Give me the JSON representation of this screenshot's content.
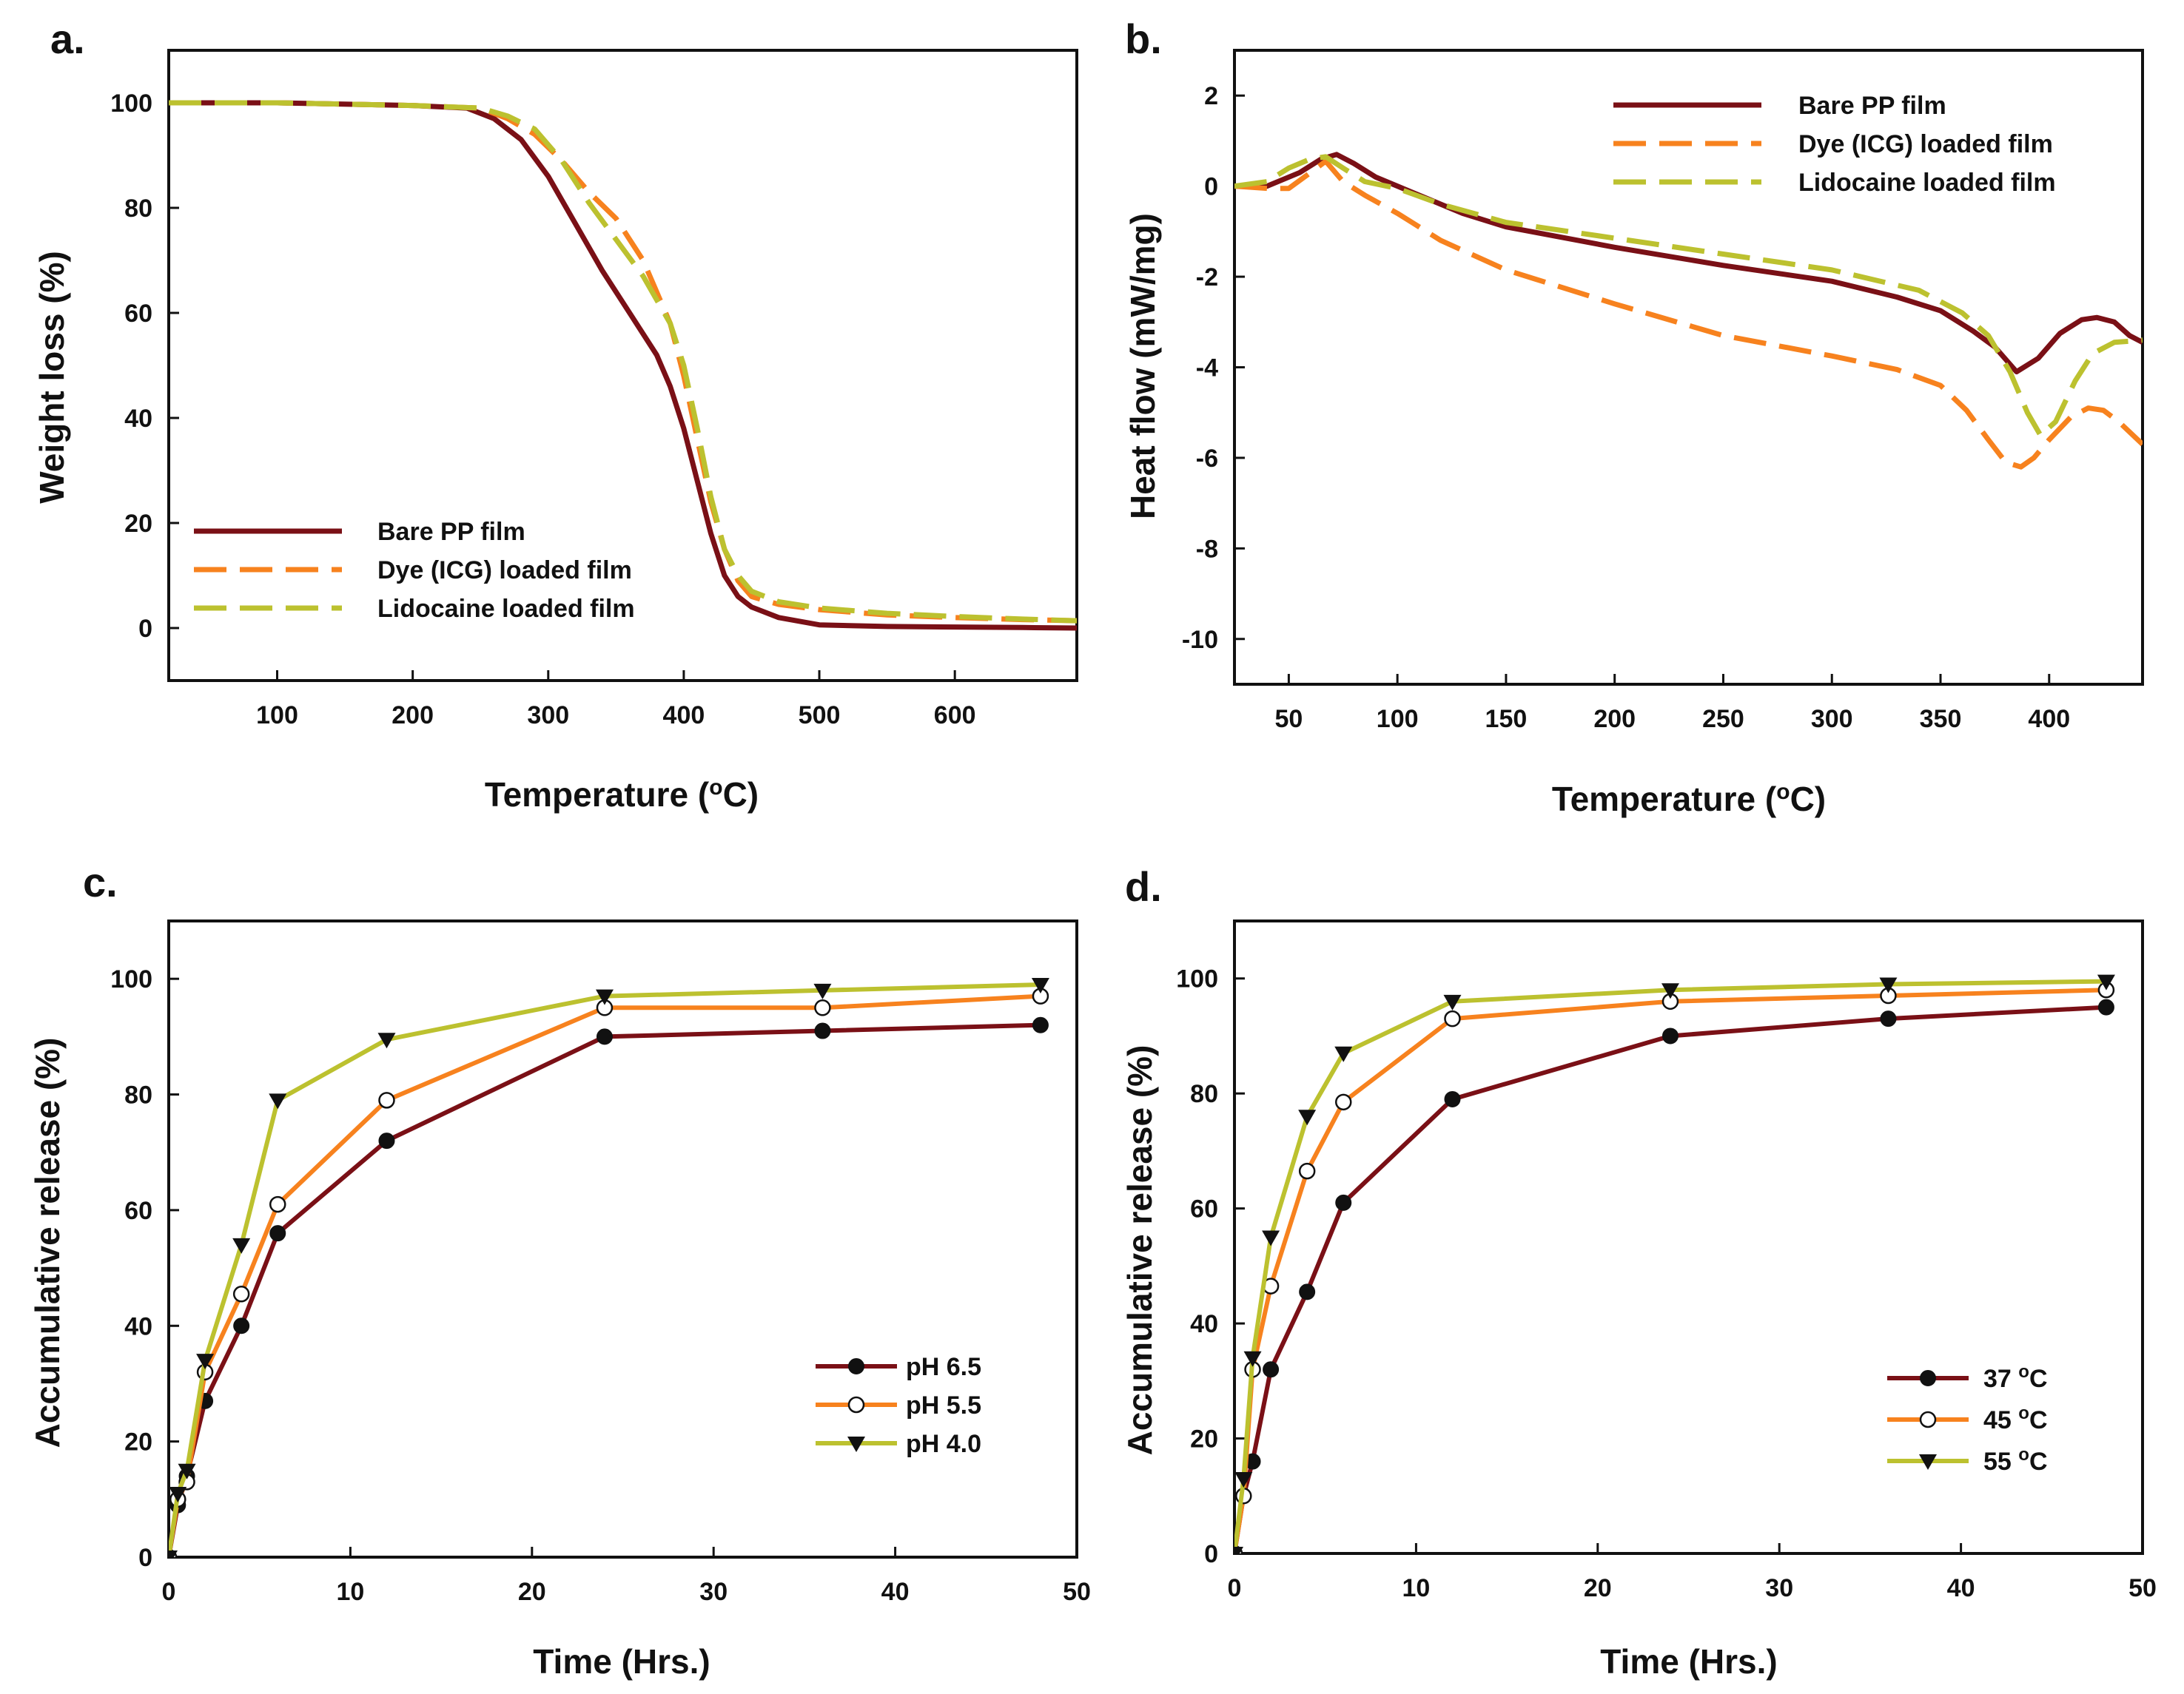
{
  "colors": {
    "bare": "#7a1016",
    "dye": "#f7821e",
    "lido": "#bcc12f",
    "ph65": "#7a1016",
    "ph55": "#f7821e",
    "ph40": "#bcc12f"
  },
  "chart_data": [
    {
      "id": "a",
      "panel": "a.",
      "type": "line",
      "xlabel_main": "Temperature (",
      "xlabel_sup": "o",
      "xlabel_end": "C)",
      "ylabel": "Weight loss (%)",
      "xlim": [
        20,
        690
      ],
      "ylim": [
        -10,
        110
      ],
      "xticks": [
        100,
        200,
        300,
        400,
        500,
        600
      ],
      "yticks": [
        0,
        20,
        40,
        60,
        80,
        100
      ],
      "legend_position": "lower-left",
      "series": [
        {
          "name": "Bare PP film",
          "color_key": "bare",
          "style": "solid",
          "x": [
            20,
            100,
            200,
            240,
            260,
            280,
            300,
            320,
            340,
            360,
            380,
            390,
            400,
            410,
            420,
            430,
            440,
            450,
            470,
            500,
            550,
            600,
            650,
            690
          ],
          "y": [
            100,
            100,
            99.5,
            99,
            97,
            93,
            86,
            77,
            68,
            60,
            52,
            46,
            38,
            28,
            18,
            10,
            6,
            4,
            2,
            0.6,
            0.3,
            0.2,
            0.1,
            0
          ]
        },
        {
          "name": "Dye (ICG) loaded film",
          "color_key": "dye",
          "style": "dash",
          "x": [
            20,
            100,
            200,
            250,
            270,
            290,
            310,
            330,
            350,
            370,
            390,
            400,
            410,
            420,
            430,
            440,
            450,
            470,
            500,
            550,
            600,
            650,
            690
          ],
          "y": [
            100,
            100,
            99.5,
            99,
            97,
            94,
            89,
            83,
            78,
            70,
            58,
            48,
            36,
            24,
            15,
            9,
            6,
            4.5,
            3.5,
            2.5,
            2,
            1.6,
            1.4
          ]
        },
        {
          "name": "Lidocaine loaded film",
          "color_key": "lido",
          "style": "dash",
          "x": [
            20,
            100,
            200,
            250,
            270,
            290,
            310,
            330,
            350,
            370,
            390,
            400,
            410,
            420,
            430,
            440,
            450,
            470,
            500,
            550,
            600,
            650,
            690
          ],
          "y": [
            100,
            100,
            99.5,
            99,
            97.5,
            95,
            89,
            81,
            74,
            67,
            58,
            50,
            38,
            25,
            15,
            10,
            7,
            5,
            3.8,
            2.8,
            2.2,
            1.7,
            1.4
          ]
        }
      ]
    },
    {
      "id": "b",
      "panel": "b.",
      "type": "line",
      "xlabel_main": "Temperature (",
      "xlabel_sup": "o",
      "xlabel_end": "C)",
      "ylabel": "Heat flow (mW/mg)",
      "xlim": [
        25,
        443
      ],
      "ylim": [
        -11,
        3
      ],
      "xticks": [
        50,
        100,
        150,
        200,
        250,
        300,
        350,
        400
      ],
      "yticks": [
        2,
        0,
        -2,
        -4,
        -6,
        -8,
        -10
      ],
      "legend_position": "top-right",
      "series": [
        {
          "name": "Bare PP film",
          "color_key": "bare",
          "style": "solid",
          "x": [
            25,
            40,
            55,
            65,
            72,
            80,
            90,
            100,
            110,
            130,
            150,
            200,
            250,
            300,
            330,
            350,
            365,
            375,
            385,
            395,
            405,
            415,
            422,
            430,
            437,
            443
          ],
          "y": [
            0,
            0,
            0.3,
            0.6,
            0.7,
            0.5,
            0.2,
            0,
            -0.2,
            -0.6,
            -0.9,
            -1.35,
            -1.75,
            -2.1,
            -2.45,
            -2.75,
            -3.2,
            -3.55,
            -4.1,
            -3.8,
            -3.25,
            -2.95,
            -2.9,
            -3.0,
            -3.3,
            -3.45
          ]
        },
        {
          "name": "Dye (ICG) loaded film",
          "color_key": "dye",
          "style": "dash",
          "x": [
            25,
            40,
            50,
            60,
            67,
            75,
            85,
            100,
            120,
            150,
            200,
            250,
            300,
            330,
            350,
            362,
            372,
            380,
            387,
            393,
            400,
            410,
            418,
            425,
            432,
            443
          ],
          "y": [
            0,
            -0.05,
            -0.05,
            0.3,
            0.55,
            0.1,
            -0.2,
            -0.6,
            -1.2,
            -1.85,
            -2.6,
            -3.3,
            -3.75,
            -4.05,
            -4.4,
            -4.95,
            -5.6,
            -6.1,
            -6.2,
            -6.0,
            -5.6,
            -5.1,
            -4.9,
            -4.95,
            -5.2,
            -5.7
          ]
        },
        {
          "name": "Lidocaine loaded film",
          "color_key": "lido",
          "style": "dash",
          "x": [
            25,
            40,
            50,
            60,
            67,
            75,
            85,
            100,
            120,
            150,
            200,
            250,
            300,
            340,
            360,
            372,
            382,
            390,
            396,
            403,
            412,
            420,
            430,
            443
          ],
          "y": [
            0,
            0.1,
            0.4,
            0.6,
            0.65,
            0.4,
            0.1,
            -0.05,
            -0.4,
            -0.8,
            -1.15,
            -1.5,
            -1.85,
            -2.3,
            -2.8,
            -3.3,
            -4.1,
            -5.0,
            -5.5,
            -5.2,
            -4.3,
            -3.7,
            -3.45,
            -3.4
          ]
        }
      ]
    },
    {
      "id": "c",
      "panel": "c.",
      "type": "line",
      "xlabel": "Time (Hrs.)",
      "ylabel": "Accumulative release (%)",
      "xlim": [
        0,
        50
      ],
      "ylim": [
        0,
        110
      ],
      "xticks": [
        0,
        10,
        20,
        30,
        40,
        50
      ],
      "yticks": [
        0,
        20,
        40,
        60,
        80,
        100
      ],
      "legend_position": "lower-right",
      "series": [
        {
          "name": "pH 6.5",
          "color_key": "ph65",
          "marker": "filled-circle",
          "x": [
            0,
            0.5,
            1,
            2,
            4,
            6,
            12,
            24,
            36,
            48
          ],
          "y": [
            0,
            9,
            14,
            27,
            40,
            56,
            72,
            90,
            91,
            92
          ]
        },
        {
          "name": "pH 5.5",
          "color_key": "ph55",
          "marker": "open-circle",
          "x": [
            0,
            0.5,
            1,
            2,
            4,
            6,
            12,
            24,
            36,
            48
          ],
          "y": [
            0,
            10,
            13,
            32,
            45.5,
            61,
            79,
            95,
            95,
            97
          ]
        },
        {
          "name": "pH 4.0",
          "color_key": "ph40",
          "marker": "triangle-down",
          "x": [
            0,
            0.5,
            1,
            2,
            4,
            6,
            12,
            24,
            36,
            48
          ],
          "y": [
            0,
            11,
            15,
            34,
            54,
            79,
            89.5,
            97,
            98,
            99
          ]
        }
      ]
    },
    {
      "id": "d",
      "panel": "d.",
      "type": "line",
      "xlabel": "Time (Hrs.)",
      "ylabel": "Accumulative release (%)",
      "xlim": [
        0,
        50
      ],
      "ylim": [
        0,
        110
      ],
      "xticks": [
        0,
        10,
        20,
        30,
        40,
        50
      ],
      "yticks": [
        0,
        20,
        40,
        60,
        80,
        100
      ],
      "legend_position": "lower-right",
      "series": [
        {
          "name": "37 °C",
          "name_main": "37 ",
          "name_sup": "o",
          "name_end": "C",
          "color_key": "ph65",
          "marker": "filled-circle",
          "x": [
            0,
            0.5,
            1,
            2,
            4,
            6,
            12,
            24,
            36,
            48
          ],
          "y": [
            0,
            10,
            16,
            32,
            45.5,
            61,
            79,
            90,
            93,
            95
          ]
        },
        {
          "name": "45 °C",
          "name_main": "45 ",
          "name_sup": "o",
          "name_end": "C",
          "color_key": "ph55",
          "marker": "open-circle",
          "x": [
            0,
            0.5,
            1,
            2,
            4,
            6,
            12,
            24,
            36,
            48
          ],
          "y": [
            0,
            10,
            32,
            46.5,
            66.5,
            78.5,
            93,
            96,
            97,
            98
          ]
        },
        {
          "name": "55 °C",
          "name_main": "55 ",
          "name_sup": "o",
          "name_end": "C",
          "color_key": "ph40",
          "marker": "triangle-down",
          "x": [
            0,
            0.5,
            1,
            2,
            4,
            6,
            12,
            24,
            36,
            48
          ],
          "y": [
            0,
            13,
            34,
            55,
            76,
            87,
            96,
            98,
            99,
            99.5
          ]
        }
      ]
    }
  ]
}
